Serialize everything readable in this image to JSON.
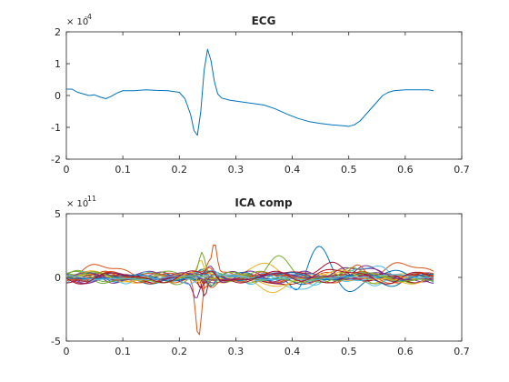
{
  "chart_data": [
    {
      "type": "line",
      "title": "ECG",
      "xlabel": "",
      "ylabel": "",
      "xlim": [
        0,
        0.7
      ],
      "ylim": [
        -2,
        2
      ],
      "xticks": [
        "0",
        "0.1",
        "0.2",
        "0.3",
        "0.4",
        "0.5",
        "0.6",
        "0.7"
      ],
      "yticks": [
        "-2",
        "-1",
        "0",
        "1",
        "2"
      ],
      "y_exponent_base": "× 10",
      "y_exponent_power": "-4",
      "grid": false,
      "series": [
        {
          "color": "#0072BD",
          "x": [
            0,
            0.01,
            0.02,
            0.03,
            0.04,
            0.05,
            0.06,
            0.07,
            0.08,
            0.09,
            0.1,
            0.12,
            0.14,
            0.16,
            0.18,
            0.2,
            0.21,
            0.22,
            0.226,
            0.232,
            0.238,
            0.244,
            0.25,
            0.256,
            0.262,
            0.268,
            0.275,
            0.29,
            0.31,
            0.33,
            0.35,
            0.37,
            0.39,
            0.41,
            0.43,
            0.45,
            0.47,
            0.49,
            0.5,
            0.51,
            0.52,
            0.53,
            0.54,
            0.55,
            0.56,
            0.57,
            0.58,
            0.6,
            0.62,
            0.64,
            0.65
          ],
          "y": [
            0.2,
            0.2,
            0.1,
            0.05,
            0.0,
            0.02,
            -0.05,
            -0.1,
            -0.02,
            0.08,
            0.15,
            0.15,
            0.18,
            0.16,
            0.15,
            0.1,
            -0.1,
            -0.6,
            -1.1,
            -1.25,
            -0.5,
            0.8,
            1.45,
            1.1,
            0.45,
            0.05,
            -0.08,
            -0.15,
            -0.2,
            -0.25,
            -0.3,
            -0.42,
            -0.58,
            -0.72,
            -0.82,
            -0.88,
            -0.92,
            -0.95,
            -0.97,
            -0.92,
            -0.8,
            -0.6,
            -0.4,
            -0.2,
            0.0,
            0.1,
            0.15,
            0.18,
            0.18,
            0.18,
            0.15
          ]
        }
      ]
    },
    {
      "type": "line",
      "title": "ICA comp",
      "xlabel": "",
      "ylabel": "",
      "xlim": [
        0,
        0.7
      ],
      "ylim": [
        -5,
        5
      ],
      "xticks": [
        "0",
        "0.1",
        "0.2",
        "0.3",
        "0.4",
        "0.5",
        "0.6",
        "0.7"
      ],
      "yticks": [
        "-5",
        "0",
        "5"
      ],
      "y_exponent_base": "× 10",
      "y_exponent_power": "-11",
      "grid": false,
      "series_colors": [
        "#0072BD",
        "#D95319",
        "#EDB120",
        "#7E2F8E",
        "#77AC30",
        "#4DBEEE",
        "#A2142F"
      ],
      "x_range": [
        0,
        0.65
      ],
      "n_components": 28
    }
  ]
}
